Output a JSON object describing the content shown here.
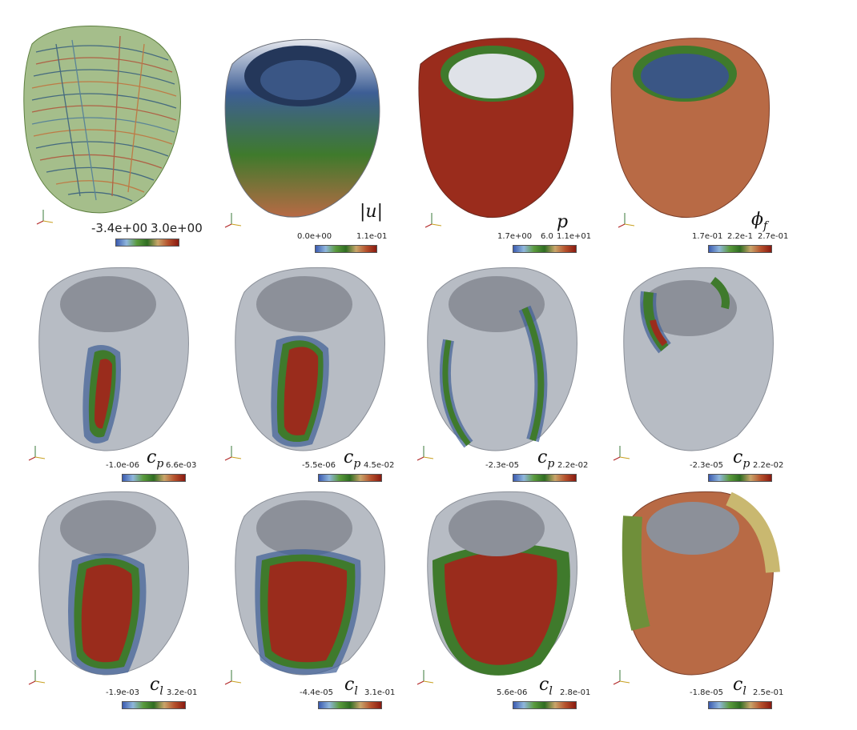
{
  "panels": [
    {
      "id": "p1",
      "cbar": {
        "min": "-3.4e+00",
        "max": "3.0e+00",
        "mid": ""
      },
      "symbol": "",
      "sub": ""
    },
    {
      "id": "p2",
      "cbar": {
        "min": "0.0e+00",
        "max": "1.1e-01",
        "mid": ""
      },
      "symbol": "|u|",
      "sub": ""
    },
    {
      "id": "p3",
      "cbar": {
        "min": "1.7e+00",
        "max": "1.1e+01",
        "mid": "6.0"
      },
      "symbol": "p",
      "sub": ""
    },
    {
      "id": "p4",
      "cbar": {
        "min": "1.7e-01",
        "max": "2.7e-01",
        "mid": "2.2e-1"
      },
      "symbol": "ϕ",
      "sub": "f"
    },
    {
      "id": "p5",
      "cbar": {
        "min": "-1.0e-06",
        "max": "6.6e-03",
        "mid": ""
      },
      "symbol": "c",
      "sub": "p"
    },
    {
      "id": "p6",
      "cbar": {
        "min": "-5.5e-06",
        "max": "4.5e-02",
        "mid": ""
      },
      "symbol": "c",
      "sub": "p"
    },
    {
      "id": "p7",
      "cbar": {
        "min": "-2.3e-05",
        "max": "2.2e-02",
        "mid": ""
      },
      "symbol": "c",
      "sub": "p"
    },
    {
      "id": "p8",
      "cbar": {
        "min": "-2.3e-05",
        "max": "2.2e-02",
        "mid": ""
      },
      "symbol": "c",
      "sub": "p"
    },
    {
      "id": "p9",
      "cbar": {
        "min": "-1.9e-03",
        "max": "3.2e-01",
        "mid": ""
      },
      "symbol": "c",
      "sub": "l"
    },
    {
      "id": "p10",
      "cbar": {
        "min": "-4.4e-05",
        "max": "3.1e-01",
        "mid": ""
      },
      "symbol": "c",
      "sub": "l"
    },
    {
      "id": "p11",
      "cbar": {
        "min": "5.6e-06",
        "max": "2.8e-01",
        "mid": ""
      },
      "symbol": "c",
      "sub": "l"
    },
    {
      "id": "p12",
      "cbar": {
        "min": "-1.8e-05",
        "max": "2.5e-01",
        "mid": ""
      },
      "symbol": "c",
      "sub": "l"
    }
  ],
  "colors": {
    "heart_gray": "#b7bcc4",
    "fiber_green": "#7fa35a",
    "field_blue": "#3d5e95",
    "field_green": "#3f7a2c",
    "field_red": "#9a2c1c",
    "field_orange": "#b86a45"
  },
  "axes_triad": {
    "x": "x",
    "y": "y",
    "z": "z"
  }
}
